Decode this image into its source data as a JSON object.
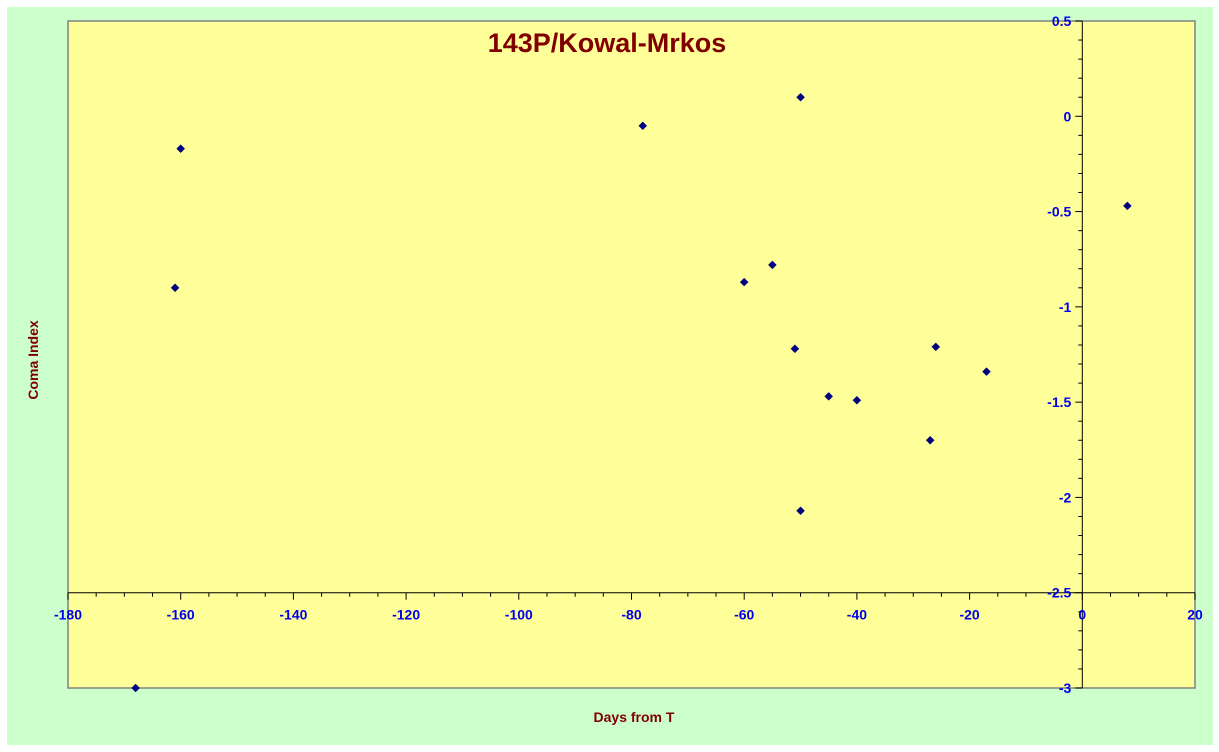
{
  "chart_data": {
    "type": "scatter",
    "title": "143P/Kowal-Mrkos",
    "xlabel": "Days from  T",
    "ylabel": "Coma Index",
    "xlim": [
      -180,
      20
    ],
    "ylim": [
      -3,
      0.5
    ],
    "x_ticks": [
      -180,
      -160,
      -140,
      -120,
      -100,
      -80,
      -60,
      -40,
      -20,
      0,
      20
    ],
    "y_ticks": [
      0.5,
      0,
      -0.5,
      -1,
      -1.5,
      -2,
      -2.5,
      -3
    ],
    "x_axis_crosses_y": -2.5,
    "y_axis_crosses_x": 0,
    "grid": false,
    "legend": "none",
    "colors": {
      "outer_background": "#ccffcc",
      "plot_background": "#ffff99",
      "marker": "#000080",
      "tick_labels": "#0000ee",
      "titles": "#800000"
    },
    "series": [
      {
        "marker": "diamond",
        "points": [
          {
            "x": -168,
            "y": -3.0
          },
          {
            "x": -161,
            "y": -0.9
          },
          {
            "x": -160,
            "y": -0.17
          },
          {
            "x": -78,
            "y": -0.05
          },
          {
            "x": -60,
            "y": -0.87
          },
          {
            "x": -55,
            "y": -0.78
          },
          {
            "x": -51,
            "y": -1.22
          },
          {
            "x": -50,
            "y": 0.1
          },
          {
            "x": -50,
            "y": -2.07
          },
          {
            "x": -45,
            "y": -1.47
          },
          {
            "x": -40,
            "y": -1.49
          },
          {
            "x": -27,
            "y": -1.7
          },
          {
            "x": -26,
            "y": -1.21
          },
          {
            "x": -17,
            "y": -1.34
          },
          {
            "x": 8,
            "y": -0.47
          }
        ]
      }
    ]
  }
}
